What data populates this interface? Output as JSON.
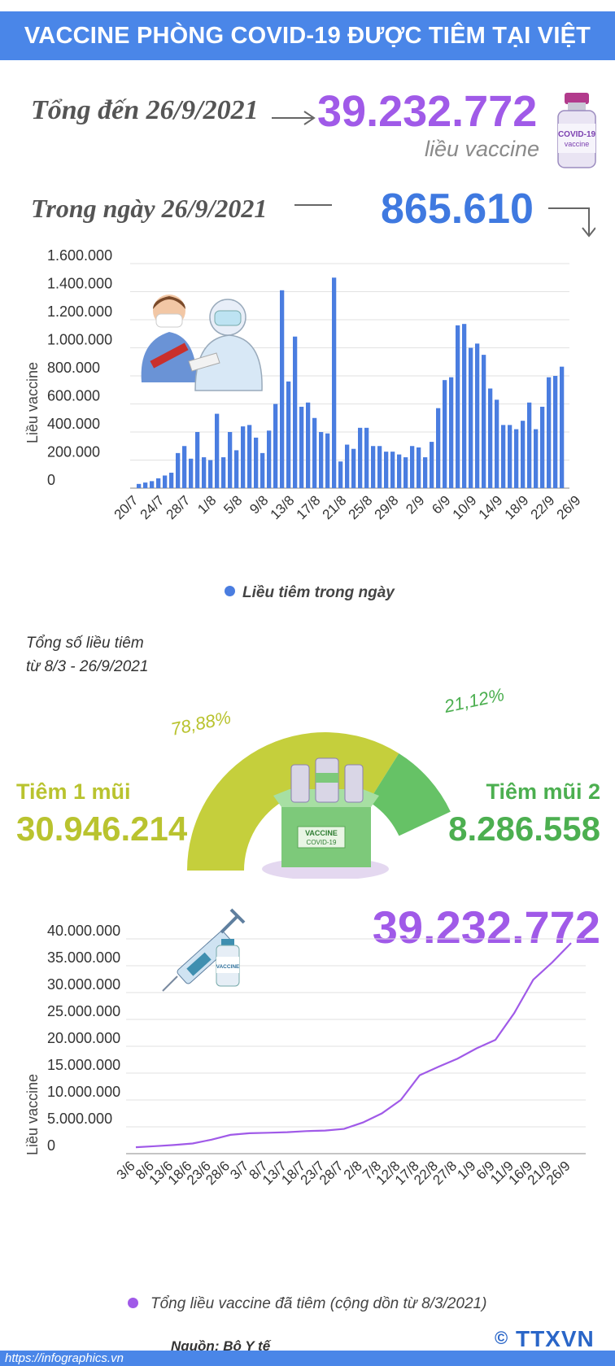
{
  "header": {
    "title": "VACCINE PHÒNG COVID-19 ĐƯỢC TIÊM TẠI VIỆT NAM"
  },
  "summary": {
    "total_label": "Tổng đến 26/9/2021",
    "total_value": "39.232.772",
    "total_unit": "liều vaccine",
    "daily_label": "Trong ngày 26/9/2021",
    "daily_value": "865.610"
  },
  "illustrations": {
    "vial_label": "COVID-19",
    "vial_sub": "vaccine",
    "box_label": "VACCINE",
    "box_sub": "COVID-19",
    "small_vial_label": "VACCINE"
  },
  "chart_data": [
    {
      "type": "bar",
      "ylabel": "Liều vaccine",
      "ylim": [
        0,
        1600000
      ],
      "yticks": [
        "0",
        "200.000",
        "400.000",
        "600.000",
        "800.000",
        "1.000.000",
        "1.200.000",
        "1.400.000",
        "1.600.000"
      ],
      "xtick_labels": [
        "20/7",
        "24/7",
        "28/7",
        "1/8",
        "5/8",
        "9/8",
        "13/8",
        "17/8",
        "21/8",
        "25/8",
        "29/8",
        "2/9",
        "6/9",
        "10/9",
        "14/9",
        "18/9",
        "22/9",
        "26/9"
      ],
      "legend": "Liều tiêm trong ngày",
      "color": "#4a7de0",
      "values": [
        30000,
        40000,
        50000,
        70000,
        90000,
        110000,
        250000,
        300000,
        210000,
        400000,
        220000,
        200000,
        530000,
        220000,
        400000,
        270000,
        440000,
        450000,
        360000,
        250000,
        410000,
        600000,
        1410000,
        760000,
        1080000,
        580000,
        610000,
        500000,
        400000,
        390000,
        1500000,
        190000,
        310000,
        280000,
        430000,
        430000,
        300000,
        300000,
        260000,
        260000,
        240000,
        220000,
        300000,
        290000,
        220000,
        330000,
        570000,
        770000,
        790000,
        1160000,
        1170000,
        1000000,
        1030000,
        950000,
        710000,
        630000,
        450000,
        450000,
        420000,
        480000,
        610000,
        420000,
        580000,
        790000,
        800000,
        865610
      ]
    },
    {
      "type": "pie",
      "title_lines": [
        "Tổng số liều tiêm",
        "từ 8/3 - 26/9/2021"
      ],
      "labels": [
        "Tiêm 1 mũi",
        "Tiêm mũi 2"
      ],
      "values": [
        30946214,
        8286558
      ],
      "value_labels": [
        "30.946.214",
        "8.286.558"
      ],
      "percent_labels": [
        "78,88%",
        "21,12%"
      ],
      "colors": [
        "#c5cf3c",
        "#66c266"
      ]
    },
    {
      "type": "line",
      "ylabel": "Liều vaccine",
      "ylim": [
        0,
        40000000
      ],
      "yticks": [
        "0",
        "5.000.000",
        "10.000.000",
        "15.000.000",
        "20.000.000",
        "25.000.000",
        "30.000.000",
        "35.000.000",
        "40.000.000"
      ],
      "xtick_labels": [
        "3/6",
        "8/6",
        "13/6",
        "18/6",
        "23/6",
        "28/6",
        "3/7",
        "8/7",
        "13/7",
        "18/7",
        "23/7",
        "28/7",
        "2/8",
        "7/8",
        "12/8",
        "17/8",
        "22/8",
        "27/8",
        "1/9",
        "6/9",
        "11/9",
        "16/9",
        "21/9",
        "26/9"
      ],
      "values": [
        1200000,
        1400000,
        1600000,
        1900000,
        2600000,
        3500000,
        3800000,
        3900000,
        4000000,
        4200000,
        4300000,
        4600000,
        5800000,
        7500000,
        10000000,
        14600000,
        16200000,
        17700000,
        19600000,
        21200000,
        26200000,
        32400000,
        35600000,
        39232772
      ],
      "legend": "Tổng liều vaccine đã tiêm (cộng dồn từ 8/3/2021)",
      "headline": "39.232.772",
      "color": "#a05ae8"
    }
  ],
  "footer": {
    "source": "Nguồn: Bộ Y tế",
    "website": "https://infographics.vn",
    "copyright": "©",
    "logo": "TTXVN"
  }
}
